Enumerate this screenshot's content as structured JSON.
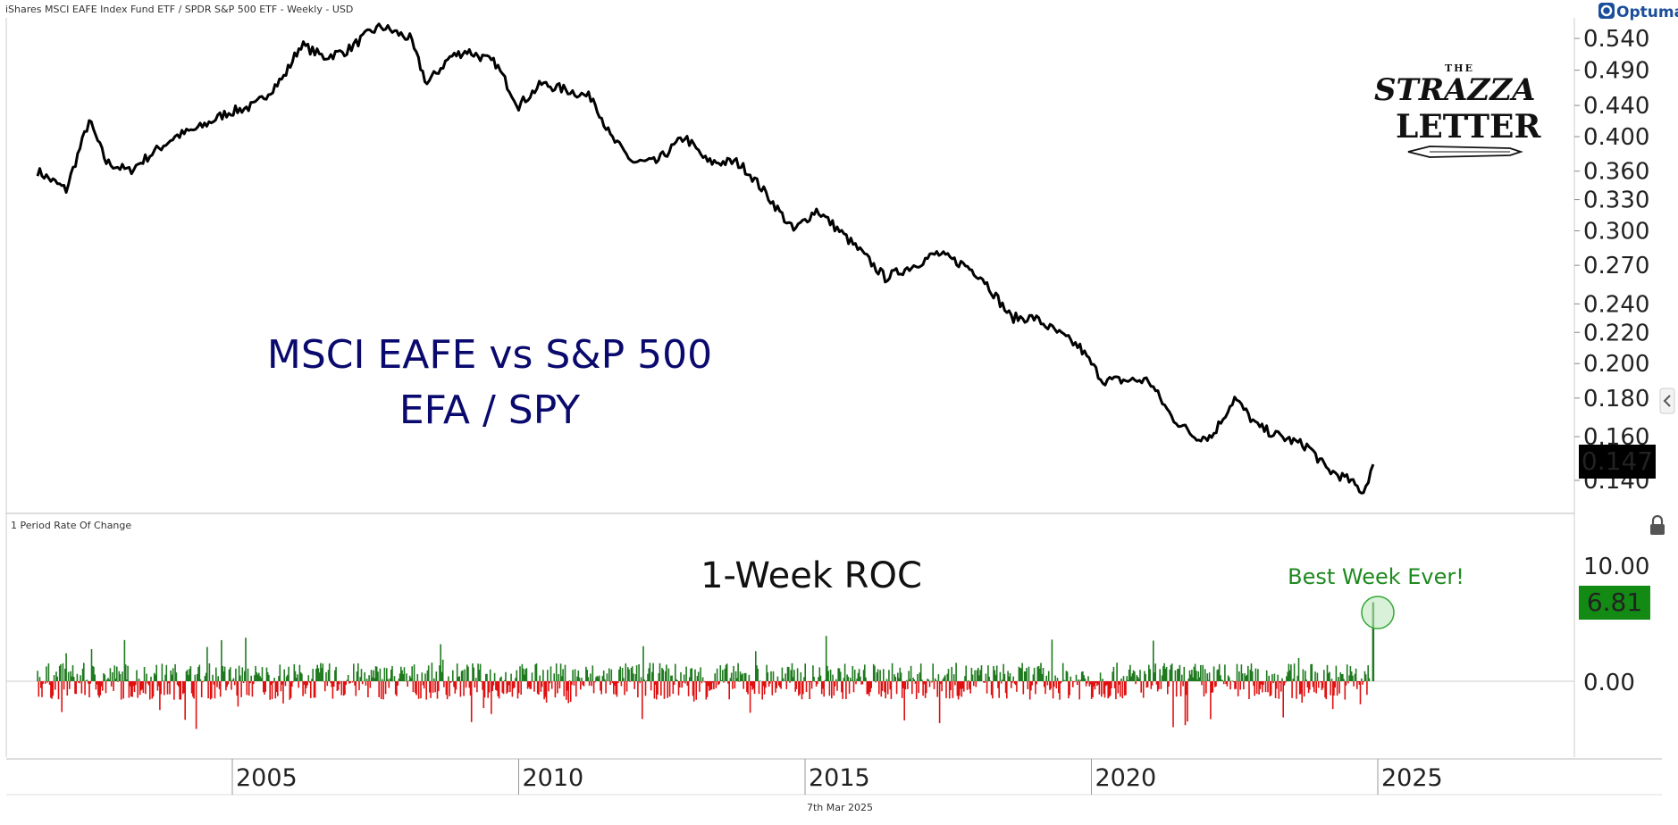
{
  "header": {
    "title": "iShares MSCI EAFE Index Fund ETF / SPDR S&P 500 ETF - Weekly - USD",
    "brand": "Optuma",
    "brand_icon": "optuma-logo-icon"
  },
  "logo": {
    "line1": "THE",
    "line2": "STRAZZA",
    "line3": "LETTER"
  },
  "footer": {
    "date": "7th Mar 2025"
  },
  "icons": {
    "collapse": "chevron-left-icon",
    "lock": "lock-icon"
  },
  "colors": {
    "line": "#000000",
    "annot": "#0a0a6e",
    "up": "#1f7a1f",
    "down": "#e01010",
    "marker": "#1f9a1f"
  },
  "chart_data": [
    {
      "type": "line",
      "yscale": "log",
      "annotation_lines": [
        "MSCI EAFE vs S&P 500",
        "EFA / SPY"
      ],
      "yticks": [
        0.14,
        0.16,
        0.18,
        0.2,
        0.22,
        0.24,
        0.27,
        0.3,
        0.33,
        0.36,
        0.4,
        0.44,
        0.49,
        0.54
      ],
      "ytick_labels": [
        "0.140",
        "0.160",
        "0.180",
        "0.200",
        "0.220",
        "0.240",
        "0.270",
        "0.300",
        "0.330",
        "0.360",
        "0.400",
        "0.440",
        "0.490",
        "0.540"
      ],
      "last_value_label": "0.147",
      "x": [
        2001.6,
        2002.1,
        2002.5,
        2002.8,
        2003.2,
        2003.6,
        2004.0,
        2004.4,
        2004.9,
        2005.4,
        2005.9,
        2006.2,
        2006.6,
        2007.0,
        2007.4,
        2007.6,
        2008.1,
        2008.4,
        2008.8,
        2009.1,
        2009.6,
        2010.0,
        2010.4,
        2010.9,
        2011.3,
        2011.6,
        2012.0,
        2012.4,
        2012.9,
        2013.3,
        2013.8,
        2014.0,
        2014.4,
        2014.8,
        2015.2,
        2015.6,
        2016.0,
        2016.4,
        2016.9,
        2017.3,
        2017.8,
        2018.1,
        2018.6,
        2019.0,
        2019.4,
        2019.8,
        2020.2,
        2020.6,
        2021.0,
        2021.4,
        2021.8,
        2022.1,
        2022.5,
        2022.9,
        2023.3,
        2023.8,
        2024.1,
        2024.5,
        2024.75,
        2024.92
      ],
      "y": [
        0.36,
        0.34,
        0.42,
        0.37,
        0.36,
        0.38,
        0.4,
        0.41,
        0.43,
        0.44,
        0.48,
        0.53,
        0.51,
        0.52,
        0.55,
        0.56,
        0.54,
        0.47,
        0.51,
        0.52,
        0.5,
        0.44,
        0.47,
        0.46,
        0.45,
        0.4,
        0.37,
        0.37,
        0.4,
        0.37,
        0.37,
        0.36,
        0.33,
        0.3,
        0.32,
        0.3,
        0.28,
        0.26,
        0.27,
        0.28,
        0.27,
        0.26,
        0.23,
        0.23,
        0.22,
        0.21,
        0.19,
        0.19,
        0.19,
        0.17,
        0.16,
        0.16,
        0.18,
        0.165,
        0.16,
        0.155,
        0.145,
        0.14,
        0.135,
        0.147
      ],
      "xlim": [
        2001.5,
        2030.0
      ]
    },
    {
      "type": "bar",
      "title": "1 Period Rate Of Change",
      "annotation": "1-Week ROC",
      "callout": "Best Week Ever!",
      "yticks": [
        0,
        10
      ],
      "ytick_labels": [
        "0.00",
        "10.00"
      ],
      "last_value_label": "6.81",
      "last_value": 6.81,
      "xticks": [
        2005,
        2010,
        2015,
        2020,
        2025
      ],
      "xtick_labels": [
        "2005",
        "2010",
        "2015",
        "2020",
        "2025"
      ],
      "xlim": [
        2001.5,
        2030.0
      ]
    }
  ]
}
